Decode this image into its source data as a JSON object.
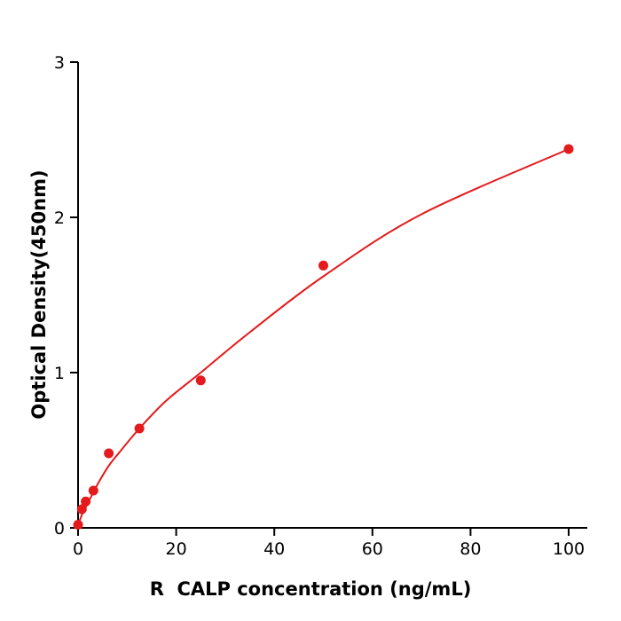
{
  "chart_data": {
    "type": "scatter",
    "title": "",
    "xlabel": "R  CALP concentration (ng/mL)",
    "ylabel": "Optical Density(450nm)",
    "xlim": [
      0,
      103.8
    ],
    "ylim": [
      0,
      3
    ],
    "xticks": [
      0,
      20,
      40,
      60,
      80,
      100
    ],
    "yticks": [
      0,
      1,
      2,
      3
    ],
    "grid": false,
    "legend_position": "none",
    "point_color": "#e41a1c",
    "curve_color": "#e41a1c",
    "axis_color": "#000000",
    "text_color": "#000000",
    "points": [
      {
        "x": 0,
        "y": 0.02
      },
      {
        "x": 0.78,
        "y": 0.12
      },
      {
        "x": 1.56,
        "y": 0.17
      },
      {
        "x": 3.125,
        "y": 0.24
      },
      {
        "x": 6.25,
        "y": 0.48
      },
      {
        "x": 12.5,
        "y": 0.64
      },
      {
        "x": 25,
        "y": 0.95
      },
      {
        "x": 50,
        "y": 1.69
      },
      {
        "x": 100,
        "y": 2.44
      }
    ],
    "fit_curve": [
      [
        0,
        0.02
      ],
      [
        1,
        0.1
      ],
      [
        2,
        0.16
      ],
      [
        3.125,
        0.23
      ],
      [
        4.5,
        0.31
      ],
      [
        6.25,
        0.4
      ],
      [
        8,
        0.47
      ],
      [
        12.5,
        0.64
      ],
      [
        18,
        0.82
      ],
      [
        25,
        1.0
      ],
      [
        35,
        1.26
      ],
      [
        50,
        1.62
      ],
      [
        70,
        2.02
      ],
      [
        100,
        2.44
      ]
    ]
  },
  "colors": {
    "background": "#ffffff"
  }
}
